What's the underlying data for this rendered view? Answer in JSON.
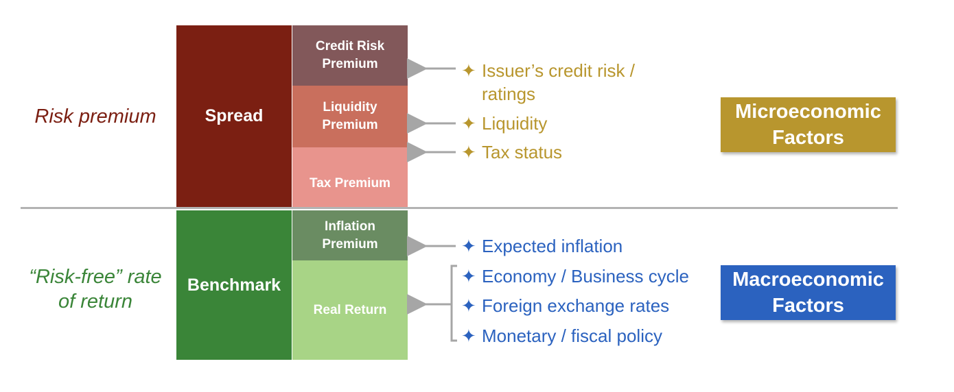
{
  "labels": {
    "risk_premium": "Risk premium",
    "risk_free_line1": "“Risk-free” rate",
    "risk_free_line2": "of return"
  },
  "blocks": {
    "spread": "Spread",
    "benchmark": "Benchmark",
    "credit_risk_1": "Credit Risk",
    "credit_risk_2": "Premium",
    "liquidity_1": "Liquidity",
    "liquidity_2": "Premium",
    "tax": "Tax Premium",
    "inflation_1": "Inflation",
    "inflation_2": "Premium",
    "real_return": "Real Return"
  },
  "micro_bullets": {
    "issuer_1": "Issuer’s credit risk /",
    "issuer_2": "ratings",
    "liquidity": "Liquidity",
    "tax": "Tax status"
  },
  "macro_bullets": {
    "inflation": "Expected inflation",
    "economy": "Economy / Business cycle",
    "fx": "Foreign exchange rates",
    "policy": "Monetary / fiscal policy"
  },
  "factors": {
    "micro_1": "Microeconomic",
    "micro_2": "Factors",
    "macro_1": "Macroeconomic",
    "macro_2": "Factors"
  },
  "icons": {
    "bullet": "✦"
  },
  "colors": {
    "spread": "#7b1f12",
    "benchmark": "#3a8538",
    "credit": "#82585a",
    "liquidity": "#c96f5d",
    "tax": "#e8948d",
    "inflation": "#6a8c62",
    "real_return": "#a8d486",
    "gold": "#b8962e",
    "blue": "#2b62bf",
    "risk_label": "#7b1f12",
    "riskfree_label": "#3a8538",
    "arrow": "#a6a6a6"
  }
}
